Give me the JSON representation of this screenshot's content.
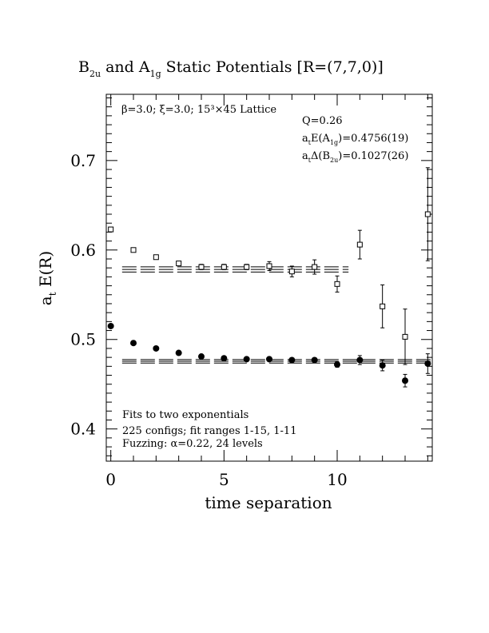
{
  "chart_data": {
    "type": "scatter",
    "title": {
      "a": "B",
      "a_sub": "2u",
      "b": " and A",
      "b_sub": "1g",
      "c": " Static Potentials [R=(7,7,0)]"
    },
    "xlabel": "time separation",
    "ylabel": {
      "main": "a",
      "sub": "t",
      "rest": " E(R)"
    },
    "xlim": [
      -0.2,
      14.2
    ],
    "ylim": [
      0.364,
      0.774
    ],
    "xticks": [
      0,
      5,
      10
    ],
    "yticks": [
      0.4,
      0.5,
      0.6,
      0.7
    ],
    "xtick_labels": [
      "0",
      "5",
      "10"
    ],
    "ytick_labels": [
      "0.4",
      "0.5",
      "0.6",
      "0.7"
    ],
    "grid": false,
    "annotations": {
      "lattice": "β=3.0; ξ=3.0; 15³×45 Lattice",
      "q": "Q=0.26",
      "energy": {
        "pre": "a",
        "pre_sub": "t",
        "mid": "E(A",
        "mid_sub": "1g",
        "post": ")=0.4756(19)"
      },
      "gap": {
        "pre": "a",
        "pre_sub": "t",
        "mid": "Δ(B",
        "mid_sub": "2u",
        "post": ")=0.1027(26)"
      },
      "fit1": "Fits to two exponentials",
      "fit2": "225 configs; fit ranges 1-15, 1-11",
      "fit3": "Fuzzing: α=0.22, 24 levels"
    },
    "series": [
      {
        "marker": "open-square",
        "x": [
          0,
          1,
          2,
          3,
          4,
          5,
          6,
          7,
          8,
          9,
          10,
          11,
          12,
          13,
          14
        ],
        "y": [
          0.623,
          0.6,
          0.592,
          0.585,
          0.581,
          0.581,
          0.581,
          0.582,
          0.576,
          0.581,
          0.562,
          0.606,
          0.537,
          0.503,
          0.64
        ],
        "err": [
          0.002,
          0.002,
          0.002,
          0.002,
          0.003,
          0.003,
          0.003,
          0.005,
          0.006,
          0.008,
          0.009,
          0.016,
          0.024,
          0.031,
          0.052
        ]
      },
      {
        "marker": "filled-circle",
        "x": [
          0,
          1,
          2,
          3,
          4,
          5,
          6,
          7,
          8,
          9,
          10,
          11,
          12,
          13,
          14
        ],
        "y": [
          0.515,
          0.496,
          0.49,
          0.485,
          0.481,
          0.479,
          0.478,
          0.478,
          0.477,
          0.477,
          0.472,
          0.477,
          0.471,
          0.454,
          0.473
        ],
        "err": [
          0.001,
          0.001,
          0.001,
          0.001,
          0.001,
          0.001,
          0.001,
          0.002,
          0.002,
          0.002,
          0.003,
          0.005,
          0.006,
          0.007,
          0.011
        ]
      }
    ],
    "fit_bands": [
      {
        "value": 0.5783,
        "error": 0.0029,
        "x_range": [
          0.5,
          10.5
        ]
      },
      {
        "value": 0.4756,
        "error": 0.0019,
        "x_range": [
          0.5,
          14.2
        ]
      }
    ]
  }
}
